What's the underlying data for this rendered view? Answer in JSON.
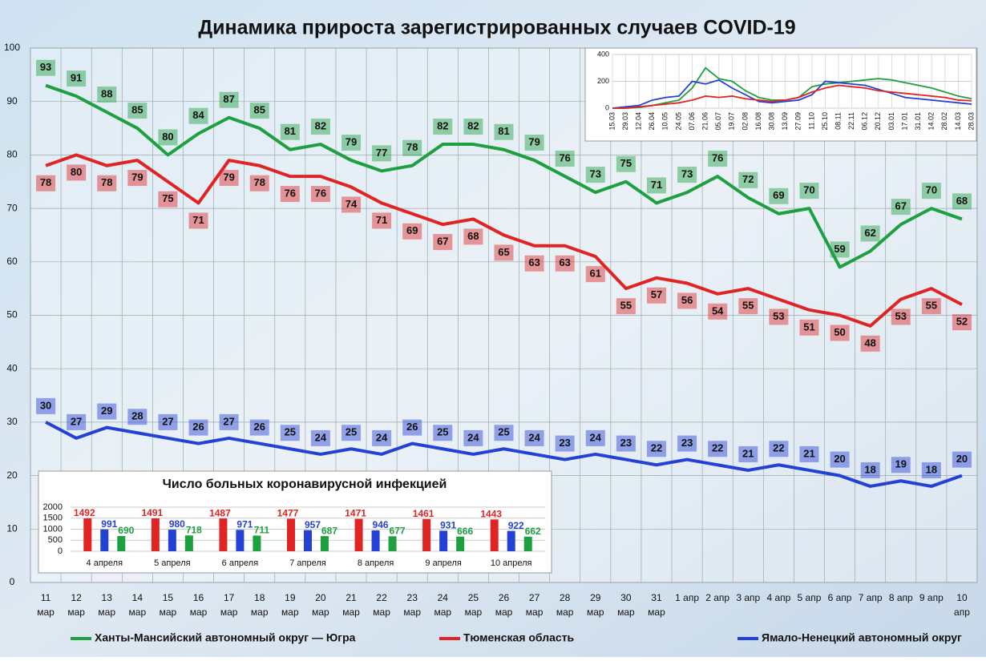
{
  "chart_data": [
    {
      "type": "line",
      "title": "Динамика прироста зарегистрированных случаев COVID-19",
      "categories": [
        [
          "11",
          "мар"
        ],
        [
          "12",
          "мар"
        ],
        [
          "13",
          "мар"
        ],
        [
          "14",
          "мар"
        ],
        [
          "15",
          "мар"
        ],
        [
          "16",
          "мар"
        ],
        [
          "17",
          "мар"
        ],
        [
          "18",
          "мар"
        ],
        [
          "19",
          "мар"
        ],
        [
          "20",
          "мар"
        ],
        [
          "21",
          "мар"
        ],
        [
          "22",
          "мар"
        ],
        [
          "23",
          "мар"
        ],
        [
          "24",
          "мар"
        ],
        [
          "25",
          "мар"
        ],
        [
          "26",
          "мар"
        ],
        [
          "27",
          "мар"
        ],
        [
          "28",
          "мар"
        ],
        [
          "29",
          "мар"
        ],
        [
          "30",
          "мар"
        ],
        [
          "31",
          "мар"
        ],
        [
          "1 апр"
        ],
        [
          "2 апр"
        ],
        [
          "3 апр"
        ],
        [
          "4 апр"
        ],
        [
          "5 апр"
        ],
        [
          "6 апр"
        ],
        [
          "7 апр"
        ],
        [
          "8 апр"
        ],
        [
          "9 апр"
        ],
        [
          "10",
          "апр"
        ]
      ],
      "series": [
        {
          "name": "Ханты-Мансийский автономный округ — Югра",
          "color": "#1fa040",
          "values": [
            93,
            91,
            88,
            85,
            80,
            84,
            87,
            85,
            81,
            82,
            79,
            77,
            78,
            82,
            82,
            81,
            79,
            76,
            73,
            75,
            71,
            73,
            76,
            72,
            69,
            70,
            59,
            62,
            67,
            70,
            68
          ]
        },
        {
          "name": "Тюменская область",
          "color": "#e02424",
          "values": [
            78,
            80,
            78,
            79,
            75,
            71,
            79,
            78,
            76,
            76,
            74,
            71,
            69,
            67,
            68,
            65,
            63,
            63,
            61,
            55,
            57,
            56,
            54,
            55,
            53,
            51,
            50,
            48,
            53,
            55,
            52
          ]
        },
        {
          "name": "Ямало-Ненецкий автономный округ",
          "color": "#2441d6",
          "values": [
            30,
            27,
            29,
            28,
            27,
            26,
            27,
            26,
            25,
            24,
            25,
            24,
            26,
            25,
            24,
            25,
            24,
            23,
            24,
            23,
            22,
            23,
            22,
            21,
            22,
            21,
            20,
            18,
            19,
            18,
            20
          ]
        }
      ],
      "ylim": [
        0,
        100
      ],
      "yticks": [
        0,
        10,
        20,
        30,
        40,
        50,
        60,
        70,
        80,
        90,
        100
      ],
      "grid": true,
      "legend": "bottom"
    },
    {
      "type": "bar",
      "title": "Число больных коронавирусной инфекцией",
      "categories": [
        "4 апреля",
        "5 апреля",
        "6 апреля",
        "7 апреля",
        "8 апреля",
        "9 апреля",
        "10 апреля"
      ],
      "series": [
        {
          "color": "#e02424",
          "values": [
            1492,
            1491,
            1487,
            1477,
            1471,
            1461,
            1443
          ]
        },
        {
          "color": "#2441d6",
          "values": [
            991,
            980,
            971,
            957,
            946,
            931,
            922
          ]
        },
        {
          "color": "#1fa040",
          "values": [
            690,
            718,
            711,
            687,
            677,
            666,
            662
          ]
        }
      ],
      "ylim": [
        0,
        2000
      ],
      "yticks": [
        0,
        500,
        1000,
        1500,
        2000
      ],
      "grid": true
    },
    {
      "type": "line",
      "categories": [
        "15.03",
        "29.03",
        "12.04",
        "26.04",
        "10.05",
        "24.05",
        "07.06",
        "21.06",
        "05.07",
        "19.07",
        "02.08",
        "16.08",
        "30.08",
        "13.09",
        "27.09",
        "11.10",
        "25.10",
        "08.11",
        "22.11",
        "06.12",
        "20.12",
        "03.01",
        "17.01",
        "31.01",
        "14.02",
        "28.02",
        "14.03",
        "28.03"
      ],
      "series": [
        {
          "color": "#1fa040",
          "values": [
            0,
            0,
            5,
            20,
            40,
            60,
            150,
            300,
            220,
            200,
            130,
            80,
            60,
            60,
            80,
            160,
            180,
            190,
            200,
            210,
            220,
            210,
            190,
            170,
            150,
            120,
            90,
            70
          ]
        },
        {
          "color": "#2441d6",
          "values": [
            0,
            10,
            20,
            60,
            80,
            90,
            200,
            180,
            210,
            150,
            100,
            50,
            40,
            50,
            60,
            100,
            200,
            190,
            180,
            170,
            140,
            110,
            80,
            70,
            60,
            50,
            40,
            30
          ]
        },
        {
          "color": "#e02424",
          "values": [
            0,
            0,
            10,
            20,
            30,
            40,
            60,
            90,
            80,
            90,
            70,
            60,
            50,
            60,
            80,
            120,
            150,
            170,
            160,
            150,
            130,
            120,
            110,
            100,
            90,
            80,
            60,
            55
          ]
        }
      ],
      "ylim": [
        0,
        400
      ],
      "yticks": [
        0,
        200,
        400
      ],
      "grid": true
    }
  ]
}
